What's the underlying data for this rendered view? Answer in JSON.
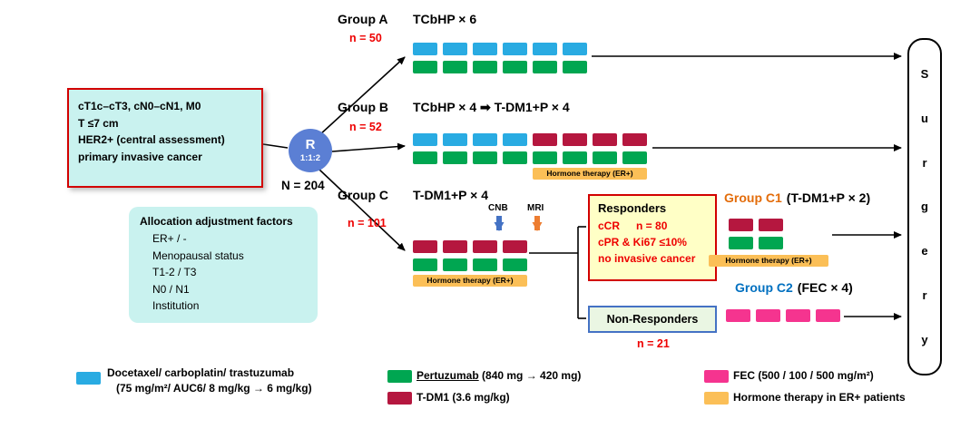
{
  "colors": {
    "blue": "#29abe2",
    "green": "#00a651",
    "crimson": "#b5173f",
    "pink": "#f5348f",
    "orange": "#fbbf57"
  },
  "accent_colors": {
    "red_text": "#ee0000",
    "group_c1_title": "#e36c0a",
    "group_c2_title": "#0070c0",
    "cnb_arrow": "#4472c4",
    "mri_arrow": "#ed7d31",
    "light_cyan_box": "#c9f2ef",
    "responders_fill": "#ffffc6",
    "responders_border": "#d20000",
    "non_responders_fill": "#eaf6e3",
    "non_responders_border": "#4472c4",
    "randomization_circle": "#5b7fd4"
  },
  "eligibility": {
    "lines": [
      "cT1c–cT3, cN0–cN1, M0",
      "T ≤7 cm",
      "HER2+ (central assessment)",
      "primary invasive cancer"
    ],
    "n_total": "N = 204"
  },
  "allocation": {
    "title": "Allocation adjustment factors",
    "factors": [
      "ER+ / -",
      "Menopausal status",
      "T1-2 / T3",
      "N0 / N1",
      "Institution"
    ]
  },
  "randomization": {
    "label": "R",
    "ratio": "1:1:2"
  },
  "groups": {
    "a": {
      "name": "Group A",
      "regimen": "TCbHP × 6",
      "n": "n = 50",
      "row1": [
        "blue",
        "blue",
        "blue",
        "blue",
        "blue",
        "blue"
      ],
      "row2": [
        "green",
        "green",
        "green",
        "green",
        "green",
        "green"
      ]
    },
    "b": {
      "name": "Group B",
      "regimen": "TCbHP × 4 ➡ T-DM1+P × 4",
      "n": "n = 52",
      "row1": [
        "blue",
        "blue",
        "blue",
        "blue",
        "crimson",
        "crimson",
        "crimson",
        "crimson"
      ],
      "row2": [
        "green",
        "green",
        "green",
        "green",
        "green",
        "green",
        "green",
        "green"
      ],
      "hormone_label": "Hormone therapy (ER+)"
    },
    "c": {
      "name": "Group C",
      "regimen": "T-DM1+P × 4",
      "n": "n = 101",
      "cnb_label": "CNB",
      "mri_label": "MRI",
      "row1": [
        "crimson",
        "crimson",
        "crimson",
        "crimson"
      ],
      "row2": [
        "green",
        "green",
        "green",
        "green"
      ],
      "hormone_label": "Hormone therapy (ER+)"
    },
    "c1": {
      "name": "Group C1",
      "regimen": "(T-DM1+P × 2)",
      "row1": [
        "crimson",
        "crimson"
      ],
      "row2": [
        "green",
        "green"
      ],
      "hormone_label": "Hormone therapy (ER+)"
    },
    "c2": {
      "name": "Group C2",
      "regimen": "(FEC × 4)",
      "row1": [
        "pink",
        "pink",
        "pink",
        "pink"
      ]
    }
  },
  "responders": {
    "title": "Responders",
    "line1": "cCR",
    "n": "n = 80",
    "line2": "cPR & Ki67 ≤10%",
    "line3": "no invasive cancer"
  },
  "non_responders": {
    "title": "Non-Responders",
    "n": "n = 21"
  },
  "surgery": {
    "letters": [
      "S",
      "u",
      "r",
      "g",
      "e",
      "r",
      "y"
    ]
  },
  "legend": {
    "docetaxel": {
      "swatch": [
        "blue"
      ],
      "line1": "Docetaxel/ carboplatin/ trastuzumab",
      "line2": "(75 mg/m²/ AUC6/ 8 mg/kg → 6 mg/kg)"
    },
    "pertuzumab": {
      "swatch": [
        "green"
      ],
      "name": "Pertuzumab",
      "rest": " (840 mg → 420 mg)"
    },
    "tdm1": {
      "swatch": [
        "crimson"
      ],
      "label": "T-DM1 (3.6 mg/kg)"
    },
    "fec": {
      "swatch": [
        "pink"
      ],
      "label": "FEC (500 / 100 / 500 mg/m²)"
    },
    "hormone": {
      "swatch": [
        "orange"
      ],
      "label": "Hormone therapy in ER+ patients"
    }
  }
}
